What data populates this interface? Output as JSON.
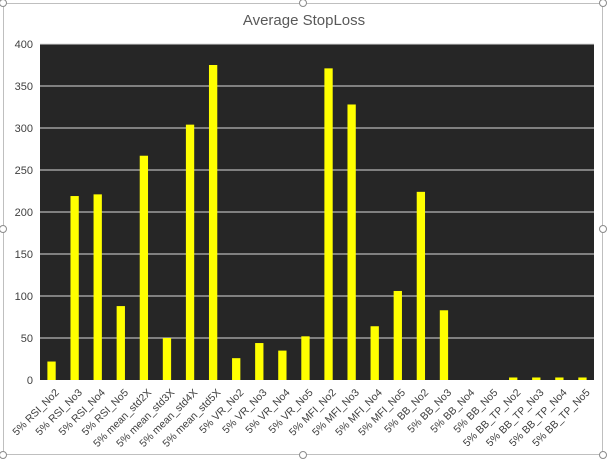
{
  "chart_data": {
    "type": "bar",
    "title": "Average StopLoss",
    "xlabel": "",
    "ylabel": "",
    "ylim": [
      0,
      400
    ],
    "yticks": [
      0,
      50,
      100,
      150,
      200,
      250,
      300,
      350,
      400
    ],
    "grid": true,
    "legend": "none",
    "colors": {
      "plot_background": "#262626",
      "bar": "#ffff00",
      "gridline": "#d9d9d9",
      "text": "#595959"
    },
    "categories": [
      "5% RSI_No2",
      "5% RSI_No3",
      "5% RSI_No4",
      "5% RSI_No5",
      "5% mean_std2X",
      "5% mean_std3X",
      "5% mean_std4X",
      "5% mean_std5X",
      "5% VR_No2",
      "5% VR_No3",
      "5% VR_No4",
      "5% VR_No5",
      "5% MFI_No2",
      "5% MFI_No3",
      "5% MFI_No4",
      "5% MFI_No5",
      "5% BB_No2",
      "5% BB_No3",
      "5% BB_No4",
      "5% BB_No5",
      "5% BB_TP_No2",
      "5% BB_TP_No3",
      "5% BB_TP_No4",
      "5% BB_TP_No5"
    ],
    "values": [
      22,
      219,
      221,
      88,
      267,
      50,
      304,
      375,
      26,
      44,
      35,
      52,
      371,
      328,
      64,
      106,
      224,
      83,
      0,
      0,
      3,
      3,
      3,
      3
    ]
  }
}
